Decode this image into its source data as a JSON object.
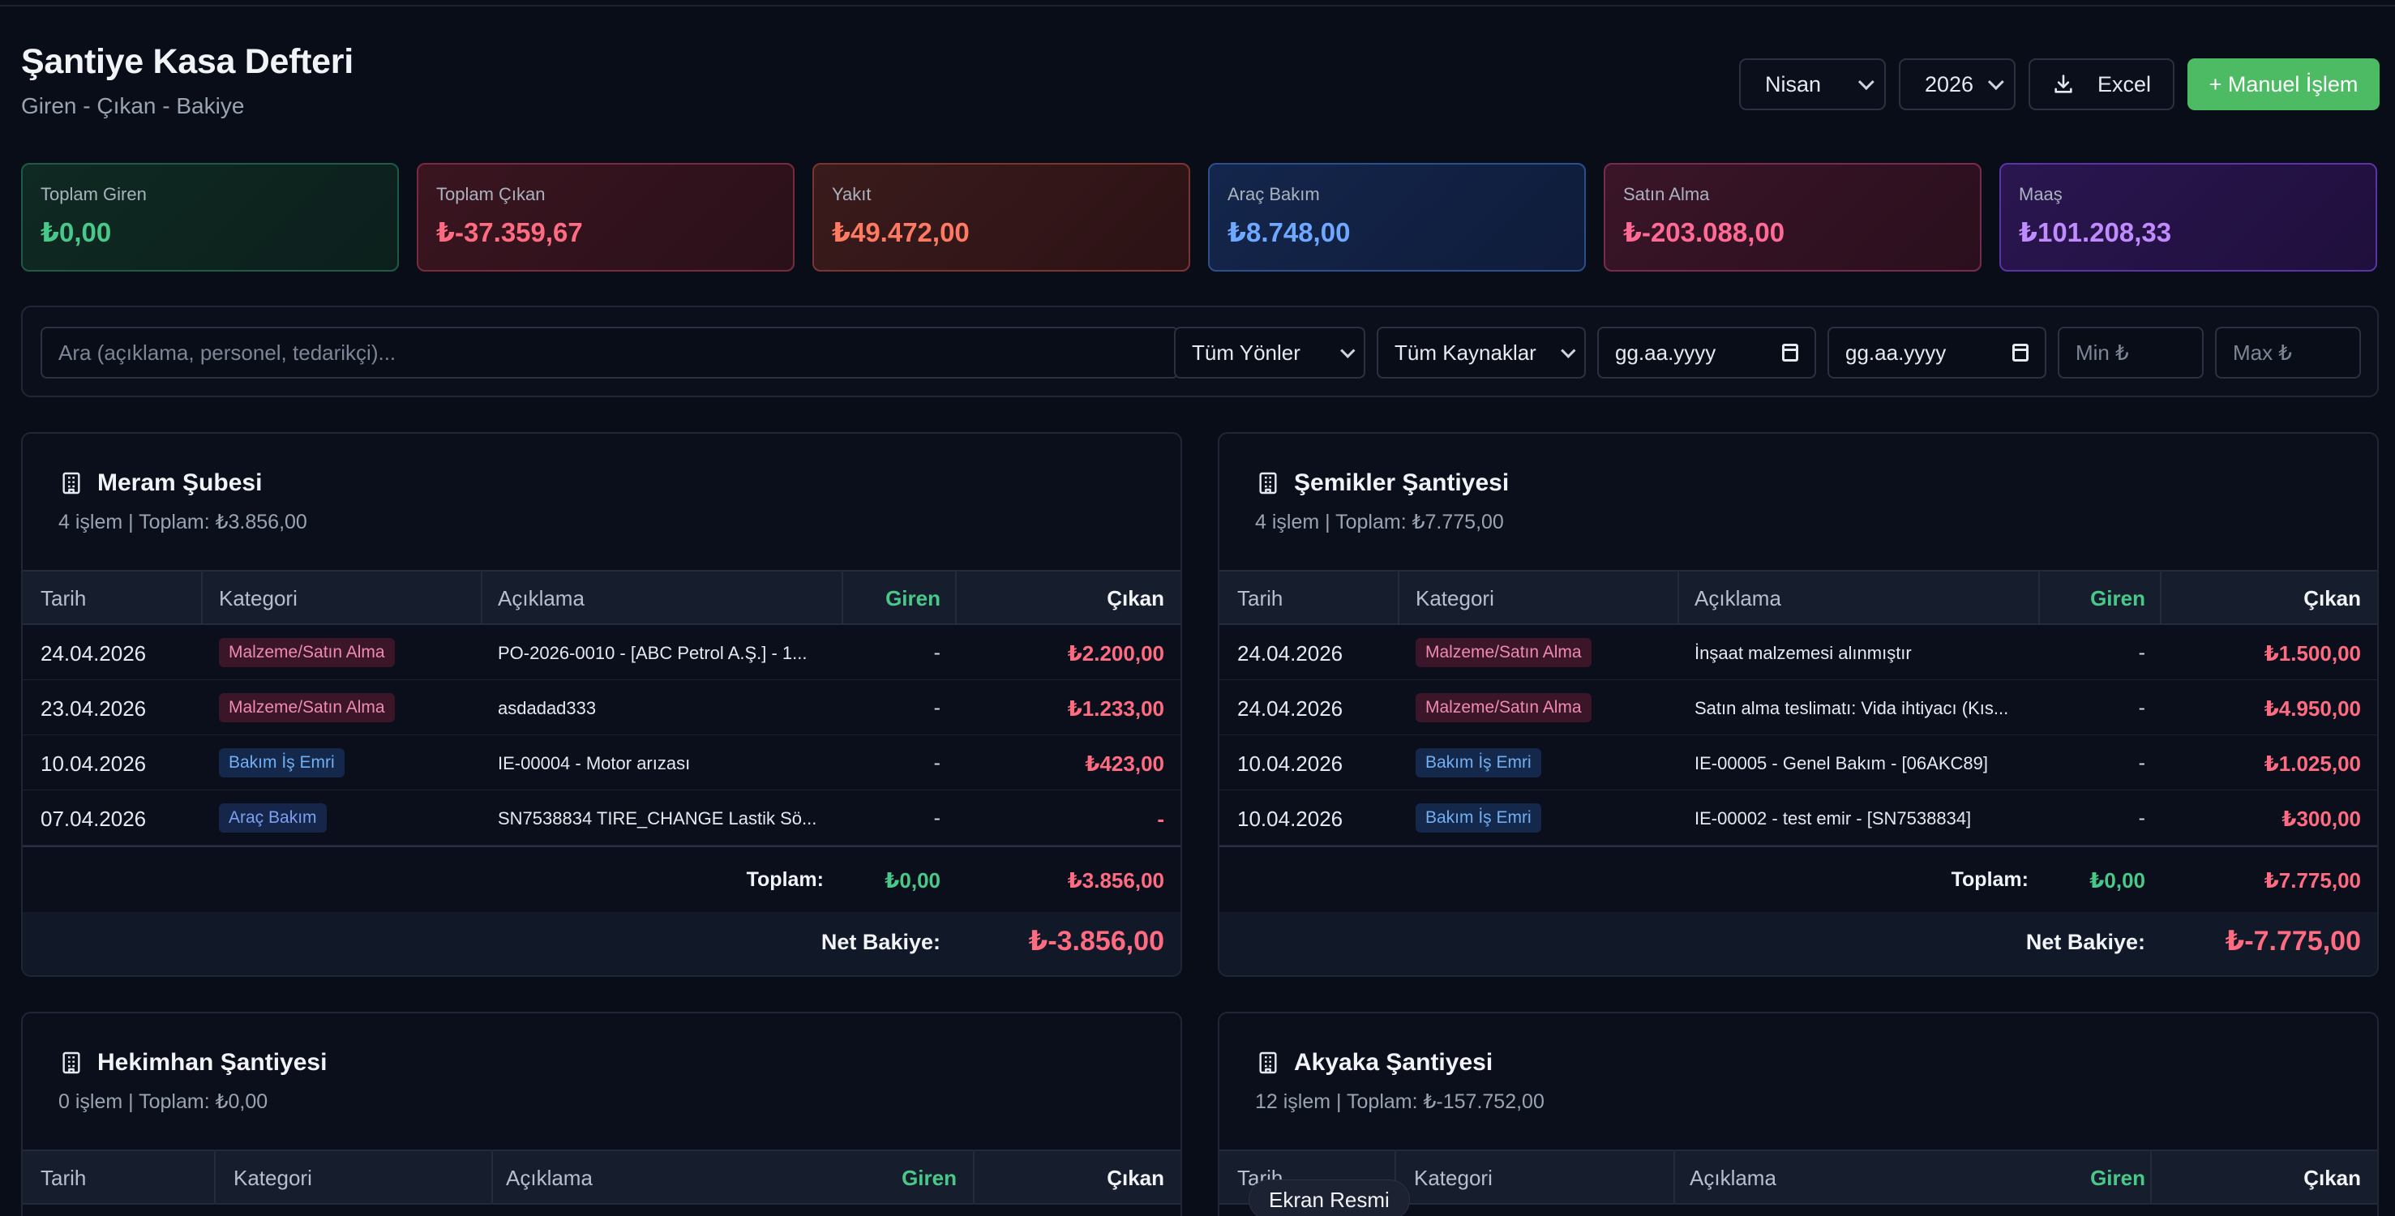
{
  "header": {
    "title": "Şantiye Kasa Defteri",
    "subtitle": "Giren - Çıkan - Bakiye"
  },
  "controls": {
    "month": "Nisan",
    "year": "2026",
    "excel_label": "Excel",
    "manual_label": "+ Manuel İşlem"
  },
  "summary": [
    {
      "label": "Toplam Giren",
      "value": "₺0,00",
      "color": "#48c98a"
    },
    {
      "label": "Toplam Çıkan",
      "value": "₺-37.359,67",
      "color": "#ff6b81"
    },
    {
      "label": "Yakıt",
      "value": "₺49.472,00",
      "color": "#ff7a62"
    },
    {
      "label": "Araç Bakım",
      "value": "₺8.748,00",
      "color": "#6ea8ff"
    },
    {
      "label": "Satın Alma",
      "value": "₺-203.088,00",
      "color": "#ff6b95"
    },
    {
      "label": "Maaş",
      "value": "₺101.208,33",
      "color": "#c08bff"
    }
  ],
  "filters": {
    "search_placeholder": "Ara (açıklama, personel, tedarikçi)...",
    "direction": "Tüm Yönler",
    "source": "Tüm Kaynaklar",
    "date_from": "gg.aa.yyyy",
    "date_to": "gg.aa.yyyy",
    "min_placeholder": "Min ₺",
    "max_placeholder": "Max ₺"
  },
  "columns": {
    "date": "Tarih",
    "category": "Kategori",
    "description": "Açıklama",
    "in": "Giren",
    "out": "Çıkan"
  },
  "labels": {
    "total": "Toplam:",
    "net": "Net Bakiye:"
  },
  "panels": [
    {
      "title": "Meram Şubesi",
      "subtitle": "4 işlem | Toplam: ₺3.856,00",
      "rows": [
        {
          "date": "24.04.2026",
          "category": "Malzeme/Satın Alma",
          "cat_style": "pink",
          "desc": "PO-2026-0010 - [ABC Petrol A.Ş.] - 1...",
          "in": "-",
          "out": "₺2.200,00"
        },
        {
          "date": "23.04.2026",
          "category": "Malzeme/Satın Alma",
          "cat_style": "pink",
          "desc": "asdadad333",
          "in": "-",
          "out": "₺1.233,00"
        },
        {
          "date": "10.04.2026",
          "category": "Bakım İş Emri",
          "cat_style": "blue",
          "desc": "IE-00004 - Motor arızası",
          "in": "-",
          "out": "₺423,00"
        },
        {
          "date": "07.04.2026",
          "category": "Araç Bakım",
          "cat_style": "blue2",
          "desc": "SN7538834 TIRE_CHANGE Lastik Sö...",
          "in": "-",
          "out": "-"
        }
      ],
      "total_in": "₺0,00",
      "total_out": "₺3.856,00",
      "net": "₺-3.856,00"
    },
    {
      "title": "Şemikler Şantiyesi",
      "subtitle": "4 işlem | Toplam: ₺7.775,00",
      "rows": [
        {
          "date": "24.04.2026",
          "category": "Malzeme/Satın Alma",
          "cat_style": "pink",
          "desc": "İnşaat malzemesi alınmıştır",
          "in": "-",
          "out": "₺1.500,00"
        },
        {
          "date": "24.04.2026",
          "category": "Malzeme/Satın Alma",
          "cat_style": "pink",
          "desc": "Satın alma teslimatı: Vida ihtiyacı (Kıs...",
          "in": "-",
          "out": "₺4.950,00"
        },
        {
          "date": "10.04.2026",
          "category": "Bakım İş Emri",
          "cat_style": "blue",
          "desc": "IE-00005 - Genel Bakım - [06AKC89]",
          "in": "-",
          "out": "₺1.025,00"
        },
        {
          "date": "10.04.2026",
          "category": "Bakım İş Emri",
          "cat_style": "blue",
          "desc": "IE-00002 - test emir - [SN7538834]",
          "in": "-",
          "out": "₺300,00"
        }
      ],
      "total_in": "₺0,00",
      "total_out": "₺7.775,00",
      "net": "₺-7.775,00"
    },
    {
      "title": "Hekimhan Şantiyesi",
      "subtitle": "0 işlem | Toplam: ₺0,00"
    },
    {
      "title": "Akyaka Şantiyesi",
      "subtitle": "12 işlem | Toplam: ₺-157.752,00"
    }
  ],
  "tooltip": "Ekran Resmi",
  "icons": {
    "building": "building-icon",
    "download": "download-icon",
    "calendar": "calendar-icon",
    "chevron": "chevron-down-icon"
  }
}
